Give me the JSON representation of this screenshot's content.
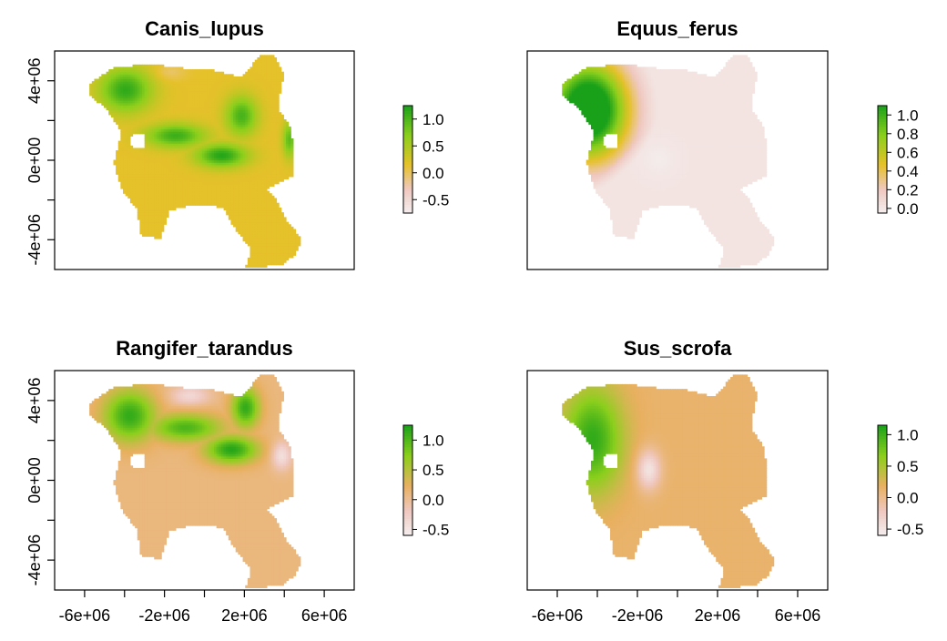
{
  "chart_data": [
    {
      "type": "heatmap",
      "title": "Canis_lupus",
      "x_ticks": [],
      "y_ticks": [
        "4e+06",
        "0e+00",
        "-4e+06"
      ],
      "y_tick_values": [
        4000000,
        2000000,
        0,
        -2000000,
        -4000000
      ],
      "legend_ticks": [
        "1.0",
        "0.5",
        "0.0",
        "-0.5"
      ],
      "legend_values": [
        1.0,
        0.5,
        0.0,
        -0.5
      ],
      "legend_range": [
        -0.75,
        1.25
      ],
      "colors": {
        "high": "#1aa11a",
        "mid_high": "#8ccf1c",
        "mid": "#e5c12a",
        "low": "#efc8c0",
        "lowest": "#f4efef"
      }
    },
    {
      "type": "heatmap",
      "title": "Equus_ferus",
      "x_ticks": [],
      "y_ticks": [],
      "legend_ticks": [
        "1.0",
        "0.8",
        "0.6",
        "0.4",
        "0.2",
        "0.0"
      ],
      "legend_values": [
        1.0,
        0.8,
        0.6,
        0.4,
        0.2,
        0.0
      ],
      "legend_range": [
        -0.05,
        1.1
      ],
      "colors": {
        "high": "#1aa11a",
        "mid_high": "#8ccf1c",
        "mid": "#e5c12a",
        "low": "#efc8c0",
        "lowest": "#f4efef"
      }
    },
    {
      "type": "heatmap",
      "title": "Rangifer_tarandus",
      "x_ticks": [
        "-6e+06",
        "-2e+06",
        "2e+06",
        "6e+06"
      ],
      "x_tick_values": [
        -6000000,
        -4000000,
        -2000000,
        0,
        2000000,
        4000000,
        6000000
      ],
      "y_ticks": [
        "4e+06",
        "0e+00",
        "-4e+06"
      ],
      "y_tick_values": [
        4000000,
        2000000,
        0,
        -2000000,
        -4000000
      ],
      "legend_ticks": [
        "1.0",
        "0.5",
        "0.0",
        "-0.5"
      ],
      "legend_values": [
        1.0,
        0.5,
        0.0,
        -0.5
      ],
      "legend_range": [
        -0.6,
        1.25
      ],
      "colors": {
        "high": "#1aa11a",
        "mid_high": "#8ccf1c",
        "mid": "#e8b060",
        "low": "#efc8c0",
        "lowest": "#f4efef"
      }
    },
    {
      "type": "heatmap",
      "title": "Sus_scrofa",
      "x_ticks": [
        "-6e+06",
        "-2e+06",
        "2e+06",
        "6e+06"
      ],
      "x_tick_values": [
        -6000000,
        -4000000,
        -2000000,
        0,
        2000000,
        4000000,
        6000000
      ],
      "y_ticks": [],
      "legend_ticks": [
        "1.0",
        "0.5",
        "0.0",
        "-0.5"
      ],
      "legend_values": [
        1.0,
        0.5,
        0.0,
        -0.5
      ],
      "legend_range": [
        -0.6,
        1.15
      ],
      "colors": {
        "high": "#1aa11a",
        "mid_high": "#8ccf1c",
        "mid": "#e8b060",
        "low": "#efc8c0",
        "lowest": "#f4efef"
      }
    }
  ],
  "axes": {
    "xlim": [
      -7500000,
      7500000
    ],
    "ylim": [
      -5500000,
      5500000
    ]
  }
}
